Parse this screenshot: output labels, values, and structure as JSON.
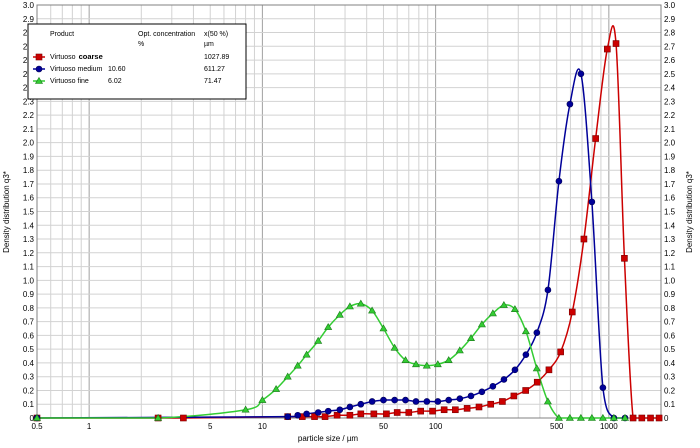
{
  "chart_data": {
    "type": "line",
    "xlabel": "particle size / µm",
    "ylabel_left": "Density distribution q3*",
    "ylabel_right": "Density distribution q3*",
    "x_scale": "log",
    "xlim": [
      0.5,
      2000
    ],
    "ylim": [
      0,
      3.0
    ],
    "grid": true,
    "x_ticks": [
      0.5,
      1,
      5,
      10,
      50,
      100,
      500,
      1000
    ],
    "x_tick_labels": [
      "0.5",
      "1",
      "5",
      "10",
      "50",
      "100",
      "500",
      "1000"
    ],
    "y_ticks": [
      0,
      0.1,
      0.2,
      0.3,
      0.4,
      0.5,
      0.6,
      0.7,
      0.8,
      0.9,
      1.0,
      1.1,
      1.2,
      1.3,
      1.4,
      1.5,
      1.6,
      1.7,
      1.8,
      1.9,
      2.0,
      2.1,
      2.2,
      2.3,
      2.4,
      2.5,
      2.6,
      2.7,
      2.8,
      2.9,
      3.0
    ],
    "y_tick_labels": [
      "0",
      "0.1",
      "0.2",
      "0.3",
      "0.4",
      "0.5",
      "0.6",
      "0.7",
      "0.8",
      "0.9",
      "1.0",
      "1.1",
      "1.2",
      "1.3",
      "1.4",
      "1.5",
      "1.6",
      "1.7",
      "1.8",
      "1.9",
      "2.0",
      "2.1",
      "2.2",
      "2.3",
      "2.4",
      "2.5",
      "2.6",
      "2.7",
      "2.8",
      "2.9",
      "3.0"
    ],
    "legend": {
      "placement": "top-left",
      "headers": [
        "Product",
        "Opt. concentration",
        "x(50 %)"
      ],
      "units": [
        "",
        "%",
        "µm"
      ],
      "rows": [
        {
          "product_prefix": "Virtuoso",
          "product_bold": "coarse",
          "concentration": "",
          "x50": "1027.89"
        },
        {
          "product_prefix": "Virtuoso medium",
          "product_bold": "",
          "concentration": "10.60",
          "x50": "611.27"
        },
        {
          "product_prefix": "Virtuoso fine",
          "product_bold": "",
          "concentration": "6.02",
          "x50": "71.47"
        }
      ]
    },
    "series": [
      {
        "name": "Virtuoso coarse",
        "color": "#cc0000",
        "marker": "square",
        "x": [
          0.5,
          2.5,
          3.5,
          14,
          17,
          20,
          23,
          27,
          32,
          37,
          44,
          52,
          60,
          70,
          82,
          96,
          112,
          130,
          152,
          178,
          208,
          243,
          283,
          331,
          386,
          451,
          527,
          615,
          718,
          839,
          980,
          1100,
          1230,
          1380,
          1550,
          1740,
          1950
        ],
        "y": [
          0.0,
          0.0,
          0.0,
          0.01,
          0.01,
          0.01,
          0.01,
          0.02,
          0.02,
          0.03,
          0.03,
          0.03,
          0.04,
          0.04,
          0.05,
          0.05,
          0.06,
          0.06,
          0.07,
          0.08,
          0.1,
          0.12,
          0.16,
          0.2,
          0.26,
          0.35,
          0.48,
          0.77,
          1.3,
          2.03,
          2.68,
          2.72,
          1.16,
          0.0,
          0.0,
          0.0,
          0.0
        ]
      },
      {
        "name": "Virtuoso medium",
        "color": "#000099",
        "marker": "circle",
        "x": [
          0.5,
          14,
          16,
          18,
          21,
          24,
          28,
          32,
          37,
          43,
          50,
          58,
          67,
          77,
          89,
          103,
          119,
          138,
          160,
          185,
          214,
          248,
          287,
          332,
          384,
          445,
          515,
          596,
          690,
          798,
          924,
          1069,
          1240
        ],
        "y": [
          0.0,
          0.01,
          0.02,
          0.03,
          0.04,
          0.05,
          0.06,
          0.08,
          0.1,
          0.12,
          0.13,
          0.13,
          0.13,
          0.12,
          0.12,
          0.12,
          0.13,
          0.14,
          0.16,
          0.19,
          0.23,
          0.28,
          0.35,
          0.46,
          0.62,
          0.93,
          1.72,
          2.28,
          2.5,
          1.57,
          0.22,
          0.0,
          0.0
        ]
      },
      {
        "name": "Virtuoso fine",
        "color": "#33cc33",
        "marker": "triangle",
        "x": [
          0.5,
          2.5,
          8,
          10,
          12,
          14,
          16,
          18,
          21,
          24,
          28,
          32,
          37,
          43,
          50,
          58,
          67,
          77,
          89,
          103,
          119,
          138,
          160,
          185,
          214,
          248,
          287,
          332,
          384,
          445,
          515,
          596,
          690,
          798,
          924,
          1069,
          1240
        ],
        "y": [
          0.0,
          0.0,
          0.06,
          0.13,
          0.21,
          0.3,
          0.38,
          0.46,
          0.56,
          0.66,
          0.75,
          0.81,
          0.83,
          0.78,
          0.65,
          0.51,
          0.42,
          0.39,
          0.38,
          0.39,
          0.42,
          0.49,
          0.58,
          0.68,
          0.76,
          0.82,
          0.79,
          0.63,
          0.36,
          0.12,
          0.0,
          0.0,
          0.0,
          0.0,
          0.0,
          0.0,
          0.0
        ]
      }
    ]
  }
}
